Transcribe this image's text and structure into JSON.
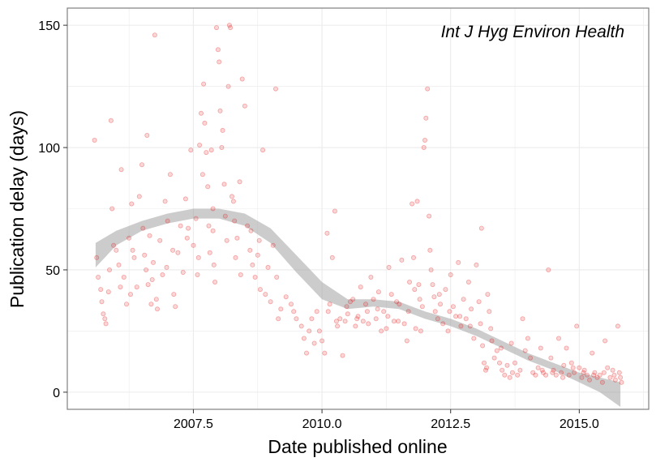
{
  "chart_data": {
    "type": "scatter",
    "title": "",
    "annotation": "Int J Hyg Environ Health",
    "xlabel": "Date published online",
    "ylabel": "Publication delay (days)",
    "xlim": [
      2005.05,
      2016.35
    ],
    "ylim": [
      -7,
      157
    ],
    "x_ticks": [
      2007.5,
      2010.0,
      2012.5,
      2015.0
    ],
    "x_tick_labels": [
      "2007.5",
      "2010.0",
      "2012.5",
      "2015.0"
    ],
    "y_ticks": [
      0,
      50,
      100,
      150
    ],
    "y_tick_labels": [
      "0",
      "50",
      "100",
      "150"
    ],
    "grid": true,
    "point_color": "#e41a1c",
    "smooth_color": "#999999",
    "smooth": {
      "x": [
        2005.6,
        2006.0,
        2006.5,
        2007.0,
        2007.5,
        2008.0,
        2008.5,
        2009.0,
        2009.5,
        2010.0,
        2010.5,
        2011.0,
        2011.5,
        2012.0,
        2012.5,
        2013.0,
        2013.5,
        2014.0,
        2014.5,
        2015.0,
        2015.4,
        2015.8
      ],
      "upper": [
        61,
        66,
        70,
        73,
        75,
        75,
        73,
        67,
        56,
        45,
        38,
        38,
        37,
        33,
        30,
        26,
        21,
        16,
        12,
        8,
        6,
        4
      ],
      "lower": [
        51,
        60,
        66,
        69,
        71,
        71,
        68,
        61,
        49,
        38,
        34,
        35,
        34,
        30,
        27,
        23,
        18,
        13,
        9,
        4,
        0,
        -6
      ]
    },
    "points": [
      [
        2005.58,
        103
      ],
      [
        2005.62,
        55
      ],
      [
        2005.65,
        47
      ],
      [
        2005.7,
        42
      ],
      [
        2005.72,
        37
      ],
      [
        2005.75,
        32
      ],
      [
        2005.78,
        30
      ],
      [
        2005.8,
        28
      ],
      [
        2005.85,
        41
      ],
      [
        2005.87,
        50
      ],
      [
        2005.9,
        111
      ],
      [
        2005.92,
        75
      ],
      [
        2005.95,
        60
      ],
      [
        2006.0,
        58
      ],
      [
        2006.05,
        52
      ],
      [
        2006.1,
        91
      ],
      [
        2006.15,
        47
      ],
      [
        2006.2,
        36
      ],
      [
        2006.25,
        63
      ],
      [
        2006.28,
        40
      ],
      [
        2006.3,
        77
      ],
      [
        2006.35,
        55
      ],
      [
        2006.4,
        43
      ],
      [
        2006.45,
        80
      ],
      [
        2006.5,
        93
      ],
      [
        2006.52,
        67
      ],
      [
        2006.55,
        56
      ],
      [
        2006.58,
        50
      ],
      [
        2006.6,
        105
      ],
      [
        2006.62,
        44
      ],
      [
        2006.65,
        64
      ],
      [
        2006.7,
        46
      ],
      [
        2006.72,
        53
      ],
      [
        2006.75,
        146
      ],
      [
        2006.78,
        38
      ],
      [
        2006.8,
        34
      ],
      [
        2006.85,
        62
      ],
      [
        2006.9,
        48
      ],
      [
        2006.95,
        78
      ],
      [
        2007.0,
        70
      ],
      [
        2007.05,
        89
      ],
      [
        2007.1,
        58
      ],
      [
        2007.15,
        35
      ],
      [
        2007.2,
        57
      ],
      [
        2007.25,
        68
      ],
      [
        2007.3,
        49
      ],
      [
        2007.35,
        79
      ],
      [
        2007.4,
        67
      ],
      [
        2007.45,
        99
      ],
      [
        2007.5,
        60
      ],
      [
        2007.55,
        71
      ],
      [
        2007.6,
        55
      ],
      [
        2007.62,
        101
      ],
      [
        2007.65,
        114
      ],
      [
        2007.68,
        89
      ],
      [
        2007.7,
        126
      ],
      [
        2007.72,
        110
      ],
      [
        2007.75,
        98
      ],
      [
        2007.78,
        84
      ],
      [
        2007.8,
        68
      ],
      [
        2007.82,
        57
      ],
      [
        2007.85,
        99
      ],
      [
        2007.88,
        75
      ],
      [
        2007.9,
        52
      ],
      [
        2007.92,
        45
      ],
      [
        2007.95,
        149
      ],
      [
        2007.98,
        140
      ],
      [
        2008.0,
        135
      ],
      [
        2008.02,
        115
      ],
      [
        2008.05,
        100
      ],
      [
        2008.07,
        107
      ],
      [
        2008.1,
        85
      ],
      [
        2008.12,
        72
      ],
      [
        2008.15,
        62
      ],
      [
        2008.18,
        125
      ],
      [
        2008.2,
        150
      ],
      [
        2008.22,
        149
      ],
      [
        2008.25,
        80
      ],
      [
        2008.28,
        78
      ],
      [
        2008.3,
        70
      ],
      [
        2008.32,
        55
      ],
      [
        2008.35,
        63
      ],
      [
        2008.4,
        86
      ],
      [
        2008.45,
        128
      ],
      [
        2008.5,
        117
      ],
      [
        2008.55,
        68
      ],
      [
        2008.6,
        58
      ],
      [
        2008.65,
        52
      ],
      [
        2008.7,
        47
      ],
      [
        2008.75,
        56
      ],
      [
        2008.8,
        42
      ],
      [
        2008.85,
        99
      ],
      [
        2008.9,
        40
      ],
      [
        2008.95,
        51
      ],
      [
        2009.0,
        37
      ],
      [
        2009.05,
        60
      ],
      [
        2009.1,
        124
      ],
      [
        2009.15,
        30
      ],
      [
        2009.2,
        34
      ],
      [
        2009.3,
        39
      ],
      [
        2009.4,
        36
      ],
      [
        2009.5,
        30
      ],
      [
        2009.6,
        27
      ],
      [
        2009.65,
        22
      ],
      [
        2009.7,
        16
      ],
      [
        2009.75,
        25
      ],
      [
        2009.8,
        30
      ],
      [
        2009.85,
        20
      ],
      [
        2009.9,
        33
      ],
      [
        2009.95,
        25
      ],
      [
        2010.0,
        21
      ],
      [
        2010.05,
        16
      ],
      [
        2010.1,
        65
      ],
      [
        2010.15,
        36
      ],
      [
        2010.2,
        55
      ],
      [
        2010.25,
        74
      ],
      [
        2010.3,
        27
      ],
      [
        2010.35,
        30
      ],
      [
        2010.4,
        15
      ],
      [
        2010.45,
        29
      ],
      [
        2010.5,
        32
      ],
      [
        2010.55,
        37
      ],
      [
        2010.6,
        38
      ],
      [
        2010.65,
        27
      ],
      [
        2010.7,
        31
      ],
      [
        2010.75,
        43
      ],
      [
        2010.8,
        29
      ],
      [
        2010.85,
        36
      ],
      [
        2010.9,
        28
      ],
      [
        2010.95,
        47
      ],
      [
        2011.0,
        38
      ],
      [
        2011.05,
        30
      ],
      [
        2011.1,
        41
      ],
      [
        2011.15,
        25
      ],
      [
        2011.2,
        33
      ],
      [
        2011.25,
        26
      ],
      [
        2011.3,
        51
      ],
      [
        2011.35,
        40
      ],
      [
        2011.4,
        29
      ],
      [
        2011.45,
        37
      ],
      [
        2011.5,
        36
      ],
      [
        2011.55,
        54
      ],
      [
        2011.6,
        28
      ],
      [
        2011.65,
        21
      ],
      [
        2011.7,
        45
      ],
      [
        2011.75,
        77
      ],
      [
        2011.78,
        55
      ],
      [
        2011.8,
        42
      ],
      [
        2011.82,
        26
      ],
      [
        2011.85,
        78
      ],
      [
        2011.9,
        38
      ],
      [
        2011.92,
        25
      ],
      [
        2011.95,
        35
      ],
      [
        2011.98,
        100
      ],
      [
        2012.0,
        103
      ],
      [
        2012.02,
        112
      ],
      [
        2012.05,
        124
      ],
      [
        2012.08,
        72
      ],
      [
        2012.1,
        58
      ],
      [
        2012.12,
        50
      ],
      [
        2012.15,
        44
      ],
      [
        2012.18,
        39
      ],
      [
        2012.2,
        33
      ],
      [
        2012.25,
        30
      ],
      [
        2012.3,
        36
      ],
      [
        2012.35,
        28
      ],
      [
        2012.4,
        42
      ],
      [
        2012.45,
        25
      ],
      [
        2012.5,
        48
      ],
      [
        2012.55,
        35
      ],
      [
        2012.6,
        31
      ],
      [
        2012.65,
        53
      ],
      [
        2012.7,
        27
      ],
      [
        2012.75,
        38
      ],
      [
        2012.8,
        30
      ],
      [
        2012.85,
        45
      ],
      [
        2012.9,
        34
      ],
      [
        2012.95,
        22
      ],
      [
        2013.0,
        52
      ],
      [
        2013.05,
        37
      ],
      [
        2013.08,
        28
      ],
      [
        2013.1,
        67
      ],
      [
        2013.12,
        19
      ],
      [
        2013.15,
        12
      ],
      [
        2013.18,
        9
      ],
      [
        2013.2,
        10
      ],
      [
        2013.22,
        40
      ],
      [
        2013.25,
        33
      ],
      [
        2013.3,
        21
      ],
      [
        2013.35,
        14
      ],
      [
        2013.4,
        17
      ],
      [
        2013.45,
        12
      ],
      [
        2013.5,
        9
      ],
      [
        2013.55,
        7
      ],
      [
        2013.6,
        11
      ],
      [
        2013.65,
        6
      ],
      [
        2013.7,
        8
      ],
      [
        2013.75,
        12
      ],
      [
        2013.8,
        7
      ],
      [
        2013.85,
        9
      ],
      [
        2013.9,
        30
      ],
      [
        2013.95,
        17
      ],
      [
        2014.0,
        22
      ],
      [
        2014.05,
        14
      ],
      [
        2014.1,
        8
      ],
      [
        2014.15,
        7
      ],
      [
        2014.2,
        10
      ],
      [
        2014.25,
        18
      ],
      [
        2014.3,
        8
      ],
      [
        2014.35,
        7
      ],
      [
        2014.4,
        50
      ],
      [
        2014.45,
        14
      ],
      [
        2014.5,
        9
      ],
      [
        2014.55,
        7
      ],
      [
        2014.6,
        22
      ],
      [
        2014.65,
        8
      ],
      [
        2014.7,
        11
      ],
      [
        2014.75,
        18
      ],
      [
        2014.8,
        7
      ],
      [
        2014.85,
        12
      ],
      [
        2014.9,
        8
      ],
      [
        2014.95,
        27
      ],
      [
        2015.0,
        10
      ],
      [
        2015.05,
        6
      ],
      [
        2015.1,
        9
      ],
      [
        2015.15,
        7
      ],
      [
        2015.2,
        5
      ],
      [
        2015.25,
        16
      ],
      [
        2015.3,
        8
      ],
      [
        2015.35,
        6
      ],
      [
        2015.4,
        7
      ],
      [
        2015.45,
        4
      ],
      [
        2015.5,
        21
      ],
      [
        2015.55,
        10
      ],
      [
        2015.6,
        6
      ],
      [
        2015.65,
        9
      ],
      [
        2015.7,
        5
      ],
      [
        2015.75,
        27
      ],
      [
        2015.78,
        8
      ],
      [
        2015.8,
        6
      ],
      [
        2015.82,
        4
      ],
      [
        2006.08,
        43
      ],
      [
        2006.32,
        58
      ],
      [
        2006.68,
        36
      ],
      [
        2006.98,
        51
      ],
      [
        2007.12,
        40
      ],
      [
        2007.38,
        63
      ],
      [
        2007.58,
        48
      ],
      [
        2007.88,
        66
      ],
      [
        2008.42,
        48
      ],
      [
        2008.62,
        66
      ],
      [
        2008.78,
        62
      ],
      [
        2009.12,
        47
      ],
      [
        2009.45,
        33
      ],
      [
        2010.12,
        33
      ],
      [
        2010.28,
        29
      ],
      [
        2010.48,
        35
      ],
      [
        2010.68,
        30
      ],
      [
        2010.88,
        33
      ],
      [
        2011.08,
        34
      ],
      [
        2011.28,
        31
      ],
      [
        2011.48,
        29
      ],
      [
        2011.68,
        33
      ],
      [
        2011.88,
        44
      ],
      [
        2012.28,
        40
      ],
      [
        2012.48,
        33
      ],
      [
        2012.68,
        31
      ],
      [
        2012.88,
        27
      ],
      [
        2013.28,
        26
      ],
      [
        2013.48,
        18
      ],
      [
        2013.68,
        20
      ],
      [
        2014.28,
        9
      ],
      [
        2014.48,
        8
      ],
      [
        2014.68,
        6
      ],
      [
        2014.88,
        10
      ],
      [
        2015.08,
        8
      ],
      [
        2015.28,
        7
      ],
      [
        2015.48,
        8
      ],
      [
        2015.68,
        7
      ]
    ]
  }
}
